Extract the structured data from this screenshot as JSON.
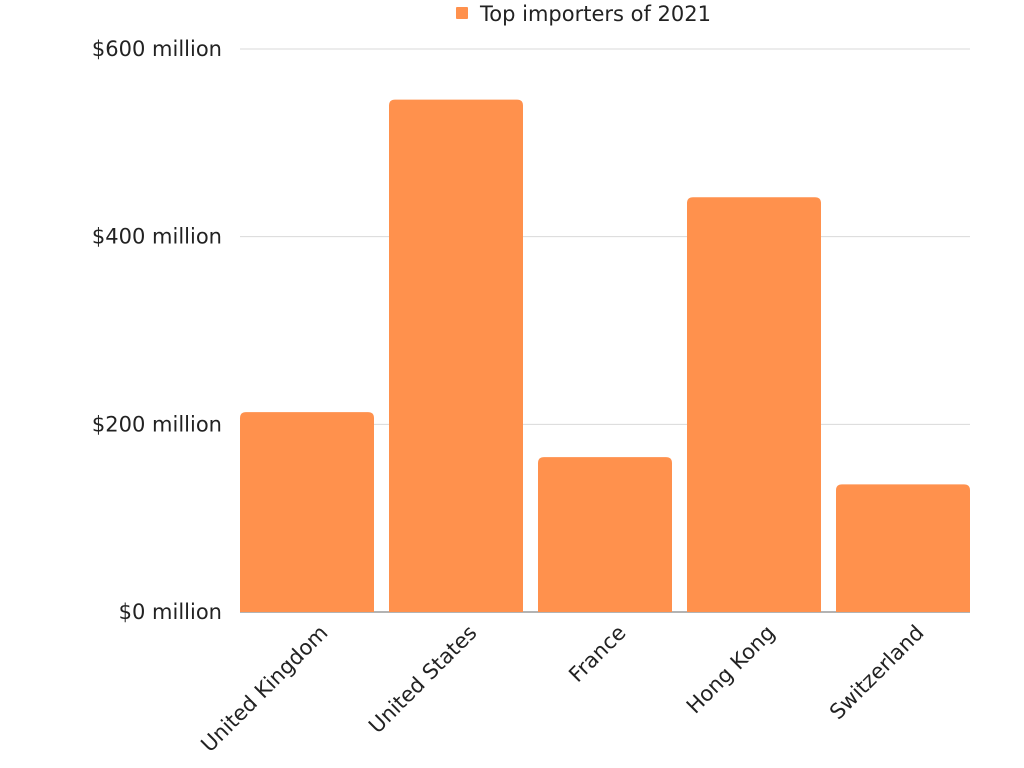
{
  "chart_data": {
    "type": "bar",
    "categories": [
      "United Kingdom",
      "United States",
      "France",
      "Hong Kong",
      "Switzerland"
    ],
    "series": [
      {
        "name": "Top importers of 2021",
        "values": [
          213,
          546,
          165,
          442,
          136
        ],
        "color": "#ff914d"
      }
    ],
    "ylim": [
      0,
      600
    ],
    "yticks": [
      0,
      200,
      400,
      600
    ],
    "ytick_labels": [
      "$0 million",
      "$200 million",
      "$400 million",
      "$600 million"
    ],
    "grid": true,
    "legend_position": "top-center",
    "xlabel": "",
    "ylabel": "",
    "title": ""
  }
}
